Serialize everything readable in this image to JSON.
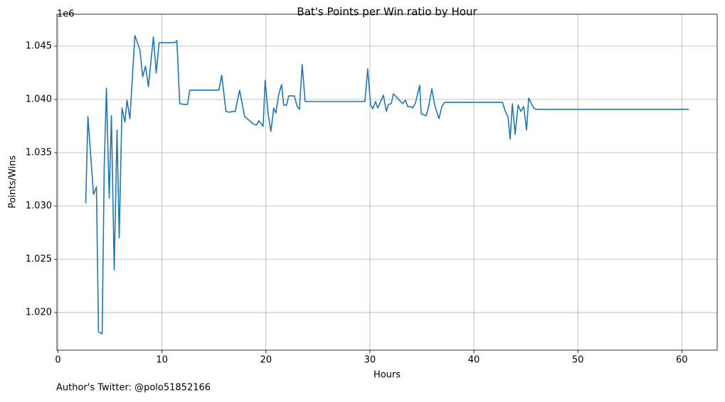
{
  "chart_data": {
    "type": "line",
    "title": "Bat's Points per Win ratio by Hour",
    "xlabel": "Hours",
    "ylabel": "Points/Wins",
    "y_offset_label": "1e6",
    "annotation": "Author's Twitter: @polo51852166",
    "color": "#1f77b4",
    "grid": true,
    "xlim": [
      -0.1,
      63.4
    ],
    "ylim": [
      1.01647,
      1.048
    ],
    "xticks": [
      0,
      10,
      20,
      30,
      40,
      50,
      60
    ],
    "yticks": [
      {
        "value": 1.02,
        "label": "1.020"
      },
      1.025,
      {
        "value": 1.03,
        "label": "1.030"
      },
      1.035,
      {
        "value": 1.04,
        "label": "1.040"
      },
      1.045
    ],
    "x": [
      2.67,
      2.88,
      3.42,
      3.7,
      3.9,
      4.25,
      4.45,
      4.66,
      4.93,
      5.14,
      5.41,
      5.68,
      5.89,
      6.16,
      6.44,
      6.64,
      6.92,
      7.4,
      7.88,
      8.15,
      8.42,
      8.7,
      9.18,
      9.45,
      9.73,
      11.23,
      11.44,
      11.71,
      12.19,
      12.47,
      12.67,
      15.48,
      15.75,
      16.16,
      16.51,
      16.78,
      17.05,
      17.47,
      17.95,
      18.84,
      19.11,
      19.32,
      19.73,
      19.93,
      20.21,
      20.48,
      20.75,
      20.96,
      21.23,
      21.51,
      21.71,
      21.99,
      22.19,
      22.74,
      23.01,
      23.22,
      23.49,
      23.77,
      29.52,
      29.79,
      30.07,
      30.27,
      30.55,
      30.75,
      31.03,
      31.3,
      31.58,
      31.78,
      32.05,
      32.26,
      33.15,
      33.42,
      33.63,
      33.9,
      34.11,
      34.38,
      34.79,
      34.93,
      35.41,
      35.62,
      35.96,
      36.23,
      36.64,
      36.92,
      37.19,
      42.74,
      43.01,
      43.29,
      43.49,
      43.7,
      43.97,
      44.25,
      44.52,
      44.79,
      45.07,
      45.27,
      45.75,
      45.96,
      60.68
    ],
    "values": [
      1.03027,
      1.0384,
      1.03107,
      1.0318,
      1.0182,
      1.018,
      1.03367,
      1.04107,
      1.03073,
      1.03847,
      1.024,
      1.03713,
      1.027,
      1.0392,
      1.03787,
      1.03993,
      1.0382,
      1.046,
      1.04467,
      1.04213,
      1.04313,
      1.0412,
      1.04587,
      1.04247,
      1.04533,
      1.04533,
      1.04553,
      1.0396,
      1.03953,
      1.03953,
      1.04087,
      1.04087,
      1.04227,
      1.03887,
      1.0388,
      1.03887,
      1.03887,
      1.04087,
      1.0384,
      1.03767,
      1.0376,
      1.038,
      1.03747,
      1.0418,
      1.03867,
      1.037,
      1.0392,
      1.03873,
      1.04047,
      1.0414,
      1.03947,
      1.03947,
      1.04033,
      1.04033,
      1.03933,
      1.03907,
      1.04327,
      1.0398,
      1.0398,
      1.04287,
      1.03947,
      1.03913,
      1.0398,
      1.0392,
      1.0398,
      1.0404,
      1.03887,
      1.03953,
      1.0396,
      1.04053,
      1.0396,
      1.03993,
      1.03933,
      1.03933,
      1.0392,
      1.03967,
      1.04133,
      1.03867,
      1.03847,
      1.0392,
      1.041,
      1.03947,
      1.0382,
      1.03933,
      1.03973,
      1.03973,
      1.03893,
      1.03833,
      1.03627,
      1.0396,
      1.03673,
      1.03947,
      1.03887,
      1.03933,
      1.03713,
      1.04013,
      1.0392,
      1.03907,
      1.03907
    ]
  }
}
